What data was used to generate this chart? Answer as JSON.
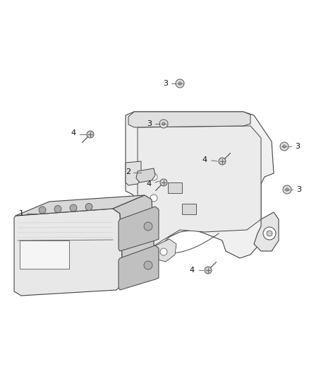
{
  "bg_color": "#ffffff",
  "line_color": "#444444",
  "fill_light": "#e8e8e8",
  "fill_mid": "#d8d8d8",
  "fill_dark": "#c8c8c8",
  "fig_width": 4.38,
  "fig_height": 5.33,
  "dpi": 100
}
